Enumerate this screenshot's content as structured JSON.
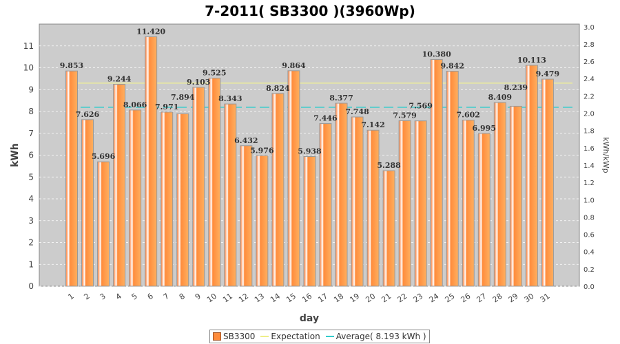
{
  "chart_data": {
    "type": "bar",
    "title": "7-2011( SB3300 )(3960Wp)",
    "xlabel": "day",
    "ylabel": "kWh",
    "y2label": "kWh/kWp",
    "ylim": [
      0,
      12
    ],
    "y2lim": [
      0,
      3.03
    ],
    "yticks": [
      "0",
      "1",
      "2",
      "3",
      "4",
      "5",
      "6",
      "7",
      "8",
      "9",
      "10",
      "11"
    ],
    "y2ticks": [
      "0.0",
      "0.2",
      "0.4",
      "0.6",
      "0.8",
      "1.0",
      "1.2",
      "1.4",
      "1.6",
      "1.8",
      "2.0",
      "2.2",
      "2.4",
      "2.6",
      "2.8",
      "3.0"
    ],
    "categories": [
      "1",
      "2",
      "3",
      "4",
      "5",
      "6",
      "7",
      "8",
      "9",
      "10",
      "11",
      "12",
      "13",
      "14",
      "15",
      "16",
      "17",
      "18",
      "19",
      "20",
      "21",
      "22",
      "23",
      "24",
      "25",
      "26",
      "27",
      "28",
      "29",
      "30",
      "31"
    ],
    "series": [
      {
        "name": "SB3300",
        "values": [
          9.853,
          7.626,
          5.696,
          9.244,
          8.066,
          11.42,
          7.971,
          7.894,
          9.103,
          9.525,
          8.343,
          6.432,
          5.976,
          8.824,
          9.864,
          5.938,
          7.446,
          8.377,
          7.748,
          7.142,
          5.288,
          7.579,
          7.569,
          10.38,
          9.842,
          7.602,
          6.995,
          8.409,
          8.239,
          10.113,
          9.479
        ]
      }
    ],
    "labels": [
      "9.853",
      "7.626",
      "5.696",
      "9.244",
      "8.066",
      "11.420",
      "7.971",
      "7.894",
      "9.103",
      "9.525",
      "8.343",
      "6.432",
      "5.976",
      "8.824",
      "9.864",
      "5.938",
      "7.446",
      "8.377",
      "7.748",
      "7.142",
      "5.288",
      "7.579",
      "7.569",
      "10.380",
      "9.842",
      "7.602",
      "6.995",
      "8.409",
      "8.239",
      "10.113",
      "9.479"
    ],
    "expectation": 9.3,
    "average": 8.193,
    "grid": true,
    "legend": {
      "position": "bottom",
      "items": [
        "SB3300",
        "Expectation",
        "Average( 8.193 kWh )"
      ]
    },
    "colors": {
      "bar": "#ff8c3c",
      "expectation": "#ffff99",
      "average": "#33cccc",
      "plot_bg": "#cccccc"
    }
  }
}
